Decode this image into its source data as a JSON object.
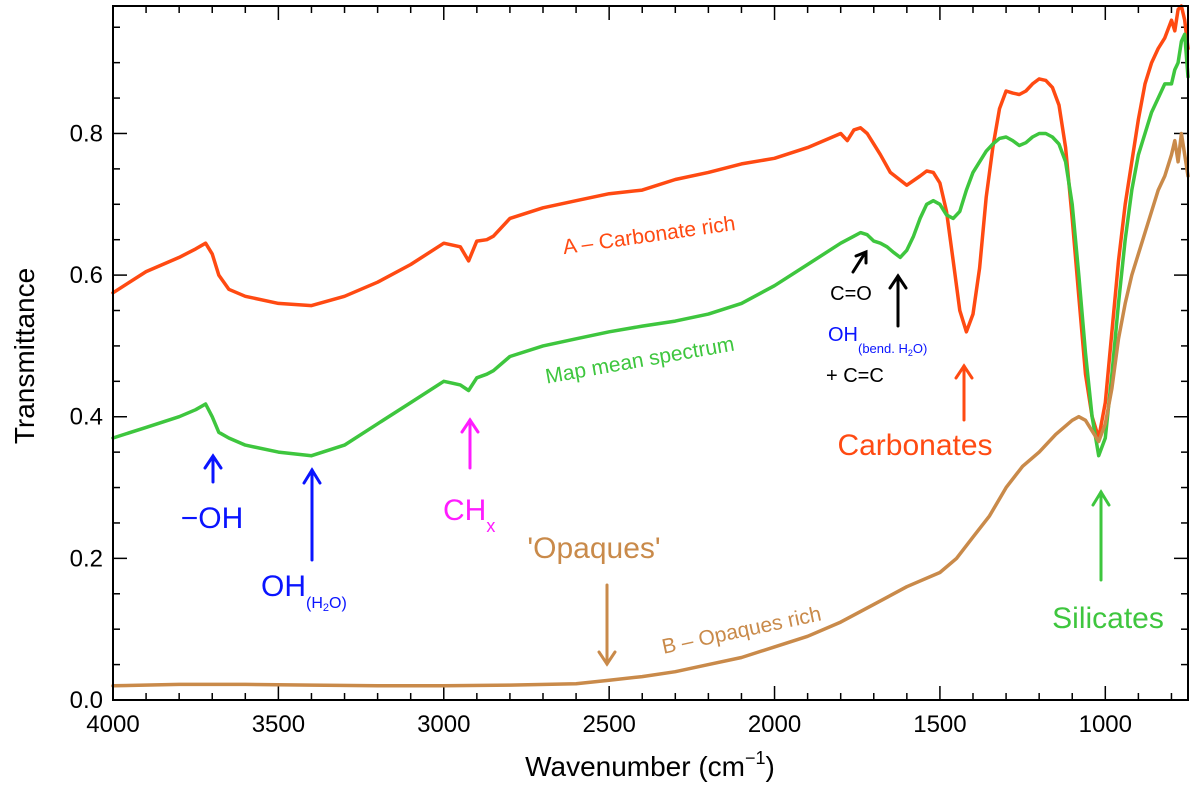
{
  "chart_data": {
    "type": "line",
    "title": "",
    "xlabel": "Wavenumber (cm",
    "xlabel_sup": "−1",
    "xlabel_close": ")",
    "ylabel": "Transmittance",
    "xlim": [
      4000,
      750
    ],
    "ylim": [
      0,
      0.98
    ],
    "x_ticks": [
      4000,
      3500,
      3000,
      2500,
      2000,
      1500,
      1000
    ],
    "x_tick_labels": [
      "4000",
      "3500",
      "3000",
      "2500",
      "2000",
      "1500",
      "1000"
    ],
    "y_ticks": [
      0.0,
      0.2,
      0.4,
      0.6,
      0.8
    ],
    "y_tick_labels": [
      "0.0",
      "0.2",
      "0.4",
      "0.6",
      "0.8"
    ],
    "series": [
      {
        "name": "A – Carbonate rich",
        "color": "#ff4a12",
        "x": [
          4000,
          3900,
          3800,
          3750,
          3720,
          3700,
          3680,
          3650,
          3600,
          3500,
          3400,
          3300,
          3200,
          3100,
          3000,
          2950,
          2925,
          2900,
          2870,
          2850,
          2800,
          2700,
          2600,
          2500,
          2400,
          2300,
          2200,
          2100,
          2000,
          1900,
          1800,
          1780,
          1760,
          1740,
          1720,
          1700,
          1680,
          1650,
          1600,
          1560,
          1540,
          1520,
          1500,
          1480,
          1460,
          1440,
          1420,
          1400,
          1380,
          1360,
          1340,
          1320,
          1300,
          1280,
          1260,
          1240,
          1220,
          1200,
          1180,
          1160,
          1140,
          1120,
          1100,
          1080,
          1060,
          1040,
          1020,
          1000,
          980,
          960,
          940,
          920,
          900,
          880,
          860,
          840,
          820,
          800,
          790,
          780,
          770,
          760,
          750
        ],
        "y": [
          0.575,
          0.605,
          0.625,
          0.637,
          0.645,
          0.63,
          0.6,
          0.58,
          0.57,
          0.56,
          0.557,
          0.57,
          0.59,
          0.615,
          0.645,
          0.64,
          0.62,
          0.648,
          0.65,
          0.655,
          0.68,
          0.695,
          0.705,
          0.715,
          0.72,
          0.735,
          0.745,
          0.757,
          0.765,
          0.78,
          0.8,
          0.79,
          0.805,
          0.808,
          0.8,
          0.785,
          0.77,
          0.745,
          0.727,
          0.74,
          0.747,
          0.745,
          0.73,
          0.69,
          0.62,
          0.55,
          0.52,
          0.545,
          0.61,
          0.71,
          0.78,
          0.835,
          0.86,
          0.857,
          0.855,
          0.86,
          0.87,
          0.877,
          0.875,
          0.865,
          0.84,
          0.78,
          0.68,
          0.57,
          0.46,
          0.4,
          0.37,
          0.42,
          0.52,
          0.62,
          0.7,
          0.76,
          0.82,
          0.87,
          0.9,
          0.92,
          0.935,
          0.96,
          0.945,
          0.975,
          0.98,
          0.96,
          0.92
        ]
      },
      {
        "name": "Map mean spectrum",
        "color": "#3ec63e",
        "x": [
          4000,
          3900,
          3800,
          3750,
          3720,
          3700,
          3680,
          3650,
          3600,
          3500,
          3400,
          3300,
          3200,
          3100,
          3000,
          2950,
          2925,
          2900,
          2870,
          2850,
          2800,
          2700,
          2600,
          2500,
          2400,
          2300,
          2200,
          2100,
          2000,
          1900,
          1800,
          1760,
          1740,
          1720,
          1700,
          1680,
          1660,
          1640,
          1620,
          1600,
          1580,
          1560,
          1540,
          1520,
          1500,
          1480,
          1460,
          1440,
          1420,
          1400,
          1380,
          1360,
          1340,
          1320,
          1300,
          1280,
          1260,
          1240,
          1220,
          1200,
          1180,
          1160,
          1140,
          1120,
          1100,
          1080,
          1060,
          1040,
          1020,
          1000,
          980,
          960,
          940,
          920,
          900,
          880,
          860,
          840,
          820,
          800,
          790,
          780,
          770,
          760,
          750
        ],
        "y": [
          0.37,
          0.385,
          0.4,
          0.41,
          0.418,
          0.4,
          0.378,
          0.37,
          0.36,
          0.35,
          0.345,
          0.36,
          0.39,
          0.42,
          0.45,
          0.445,
          0.437,
          0.455,
          0.46,
          0.465,
          0.485,
          0.5,
          0.51,
          0.52,
          0.528,
          0.535,
          0.545,
          0.56,
          0.585,
          0.615,
          0.645,
          0.655,
          0.66,
          0.657,
          0.648,
          0.645,
          0.64,
          0.632,
          0.625,
          0.635,
          0.655,
          0.68,
          0.7,
          0.705,
          0.7,
          0.685,
          0.68,
          0.69,
          0.72,
          0.745,
          0.76,
          0.775,
          0.785,
          0.793,
          0.795,
          0.79,
          0.783,
          0.787,
          0.795,
          0.8,
          0.8,
          0.795,
          0.785,
          0.76,
          0.7,
          0.6,
          0.49,
          0.4,
          0.345,
          0.37,
          0.46,
          0.56,
          0.65,
          0.72,
          0.77,
          0.8,
          0.83,
          0.85,
          0.87,
          0.87,
          0.89,
          0.9,
          0.93,
          0.94,
          0.88
        ]
      },
      {
        "name": "B – Opaques rich",
        "color": "#c98a4a",
        "x": [
          4000,
          3800,
          3600,
          3400,
          3200,
          3000,
          2800,
          2600,
          2500,
          2400,
          2300,
          2200,
          2100,
          2000,
          1900,
          1800,
          1700,
          1600,
          1500,
          1450,
          1400,
          1350,
          1300,
          1250,
          1200,
          1150,
          1100,
          1080,
          1060,
          1040,
          1020,
          1000,
          980,
          960,
          940,
          920,
          900,
          880,
          860,
          840,
          820,
          800,
          790,
          780,
          770,
          760,
          750
        ],
        "y": [
          0.02,
          0.022,
          0.022,
          0.021,
          0.02,
          0.02,
          0.021,
          0.023,
          0.028,
          0.033,
          0.04,
          0.05,
          0.06,
          0.075,
          0.09,
          0.11,
          0.135,
          0.16,
          0.18,
          0.2,
          0.23,
          0.26,
          0.3,
          0.33,
          0.35,
          0.375,
          0.395,
          0.4,
          0.395,
          0.38,
          0.365,
          0.39,
          0.44,
          0.51,
          0.56,
          0.6,
          0.63,
          0.66,
          0.69,
          0.72,
          0.74,
          0.77,
          0.79,
          0.76,
          0.8,
          0.77,
          0.74
        ]
      }
    ]
  },
  "annotations": {
    "series_label_a": "A – Carbonate rich",
    "series_label_map": "Map mean spectrum",
    "series_label_b": "B – Opaques rich",
    "oh_free": "−OH",
    "oh_water_main": "OH",
    "oh_water_sub": "(H",
    "oh_water_sub2": "2",
    "oh_water_sub3": "O)",
    "chx_main": "CH",
    "chx_sub": "x",
    "opaques": "'Opaques'",
    "c_eq_o": "C=O",
    "oh_bend_main": "OH",
    "oh_bend_sub": "(bend. H",
    "oh_bend_sub2": "2",
    "oh_bend_sub3": "O)",
    "c_eq_c": "+ C=C",
    "carbonates": "Carbonates",
    "silicates": "Silicates"
  },
  "colors": {
    "blue": "#0a14ff",
    "magenta": "#ff1cff",
    "orange": "#ff4a12",
    "green": "#3ec63e",
    "brown": "#c98a4a",
    "black": "#000000"
  }
}
